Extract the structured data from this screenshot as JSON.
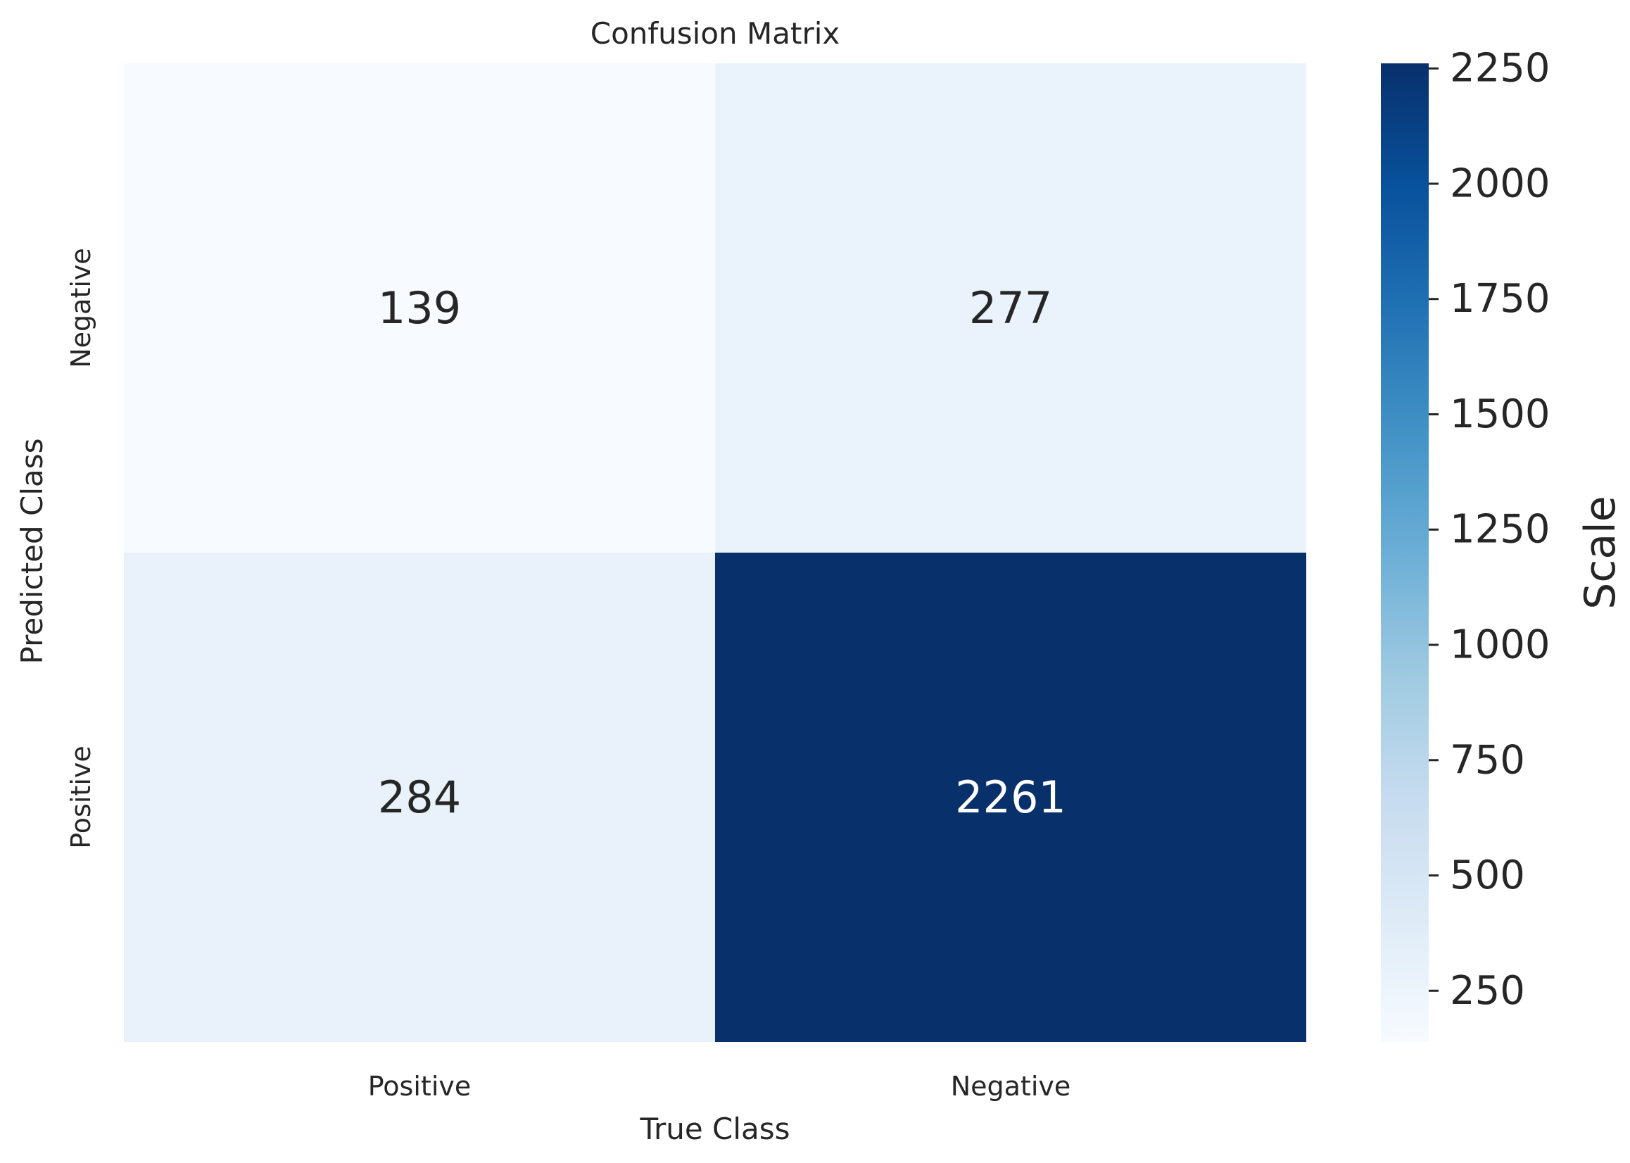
{
  "chart_data": {
    "type": "heatmap",
    "title": "Confusion Matrix",
    "xlabel": "True Class",
    "ylabel": "Predicted Class",
    "x_categories": [
      "Positive",
      "Negative"
    ],
    "y_categories": [
      "Negative",
      "Positive"
    ],
    "values": [
      [
        139,
        277
      ],
      [
        284,
        2261
      ]
    ],
    "colorbar": {
      "label": "Scale",
      "range": [
        139,
        2261
      ],
      "ticks": [
        250,
        500,
        750,
        1000,
        1250,
        1500,
        1750,
        2000,
        2250
      ],
      "colormap": "Blues"
    },
    "grid": false
  }
}
